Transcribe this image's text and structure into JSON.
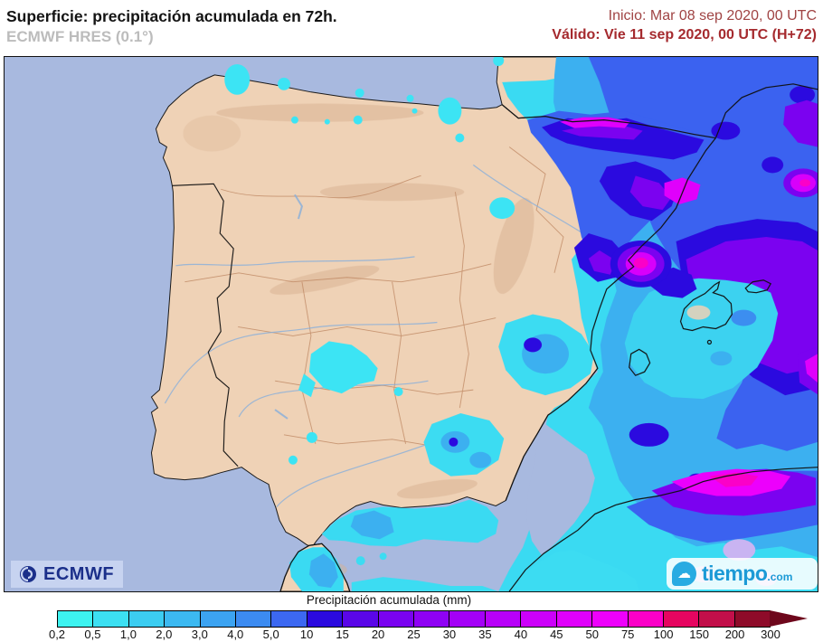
{
  "header": {
    "title": "Superficie: precipitación acumulada en 72h.",
    "model": "ECMWF HRES (0.1°)",
    "init": "Inicio: Mar 08 sep 2020, 00 UTC",
    "valid": "Válido: Vie 11 sep 2020, 00 UTC (H+72)"
  },
  "branding": {
    "ecmwf": "ECMWF",
    "tiempo": "tiempo",
    "tiempo_tld": ".com",
    "tiempo_cloud_glyph": "☁"
  },
  "legend": {
    "title": "Precipitación acumulada (mm)",
    "labels": [
      "0,2",
      "0,5",
      "1,0",
      "2,0",
      "3,0",
      "4,0",
      "5,0",
      "10",
      "15",
      "20",
      "25",
      "30",
      "35",
      "40",
      "45",
      "50",
      "75",
      "100",
      "150",
      "200",
      "300"
    ],
    "colors": [
      "#3DF3F0",
      "#3CE0F2",
      "#3CCDF1",
      "#3CB9F1",
      "#3CA3F1",
      "#3C8BF1",
      "#3C68F1",
      "#2B0ADF",
      "#5A06E8",
      "#7A03F0",
      "#8F01F4",
      "#A400F7",
      "#B800F9",
      "#CC00FA",
      "#E000FB",
      "#EE00FC",
      "#FB00C8",
      "#E60560",
      "#C20F4A",
      "#8E0B29"
    ],
    "arrow_color": "#6E071C"
  },
  "map": {
    "sea_color": "#A8B9DF",
    "land_color": "#EFD2B6",
    "region": "Iberian Peninsula, Balearic Islands, SW France, NW Africa",
    "heavy_precip_areas": "Pyrenees, Catalonia, western Mediterranean, Algerian coast"
  }
}
